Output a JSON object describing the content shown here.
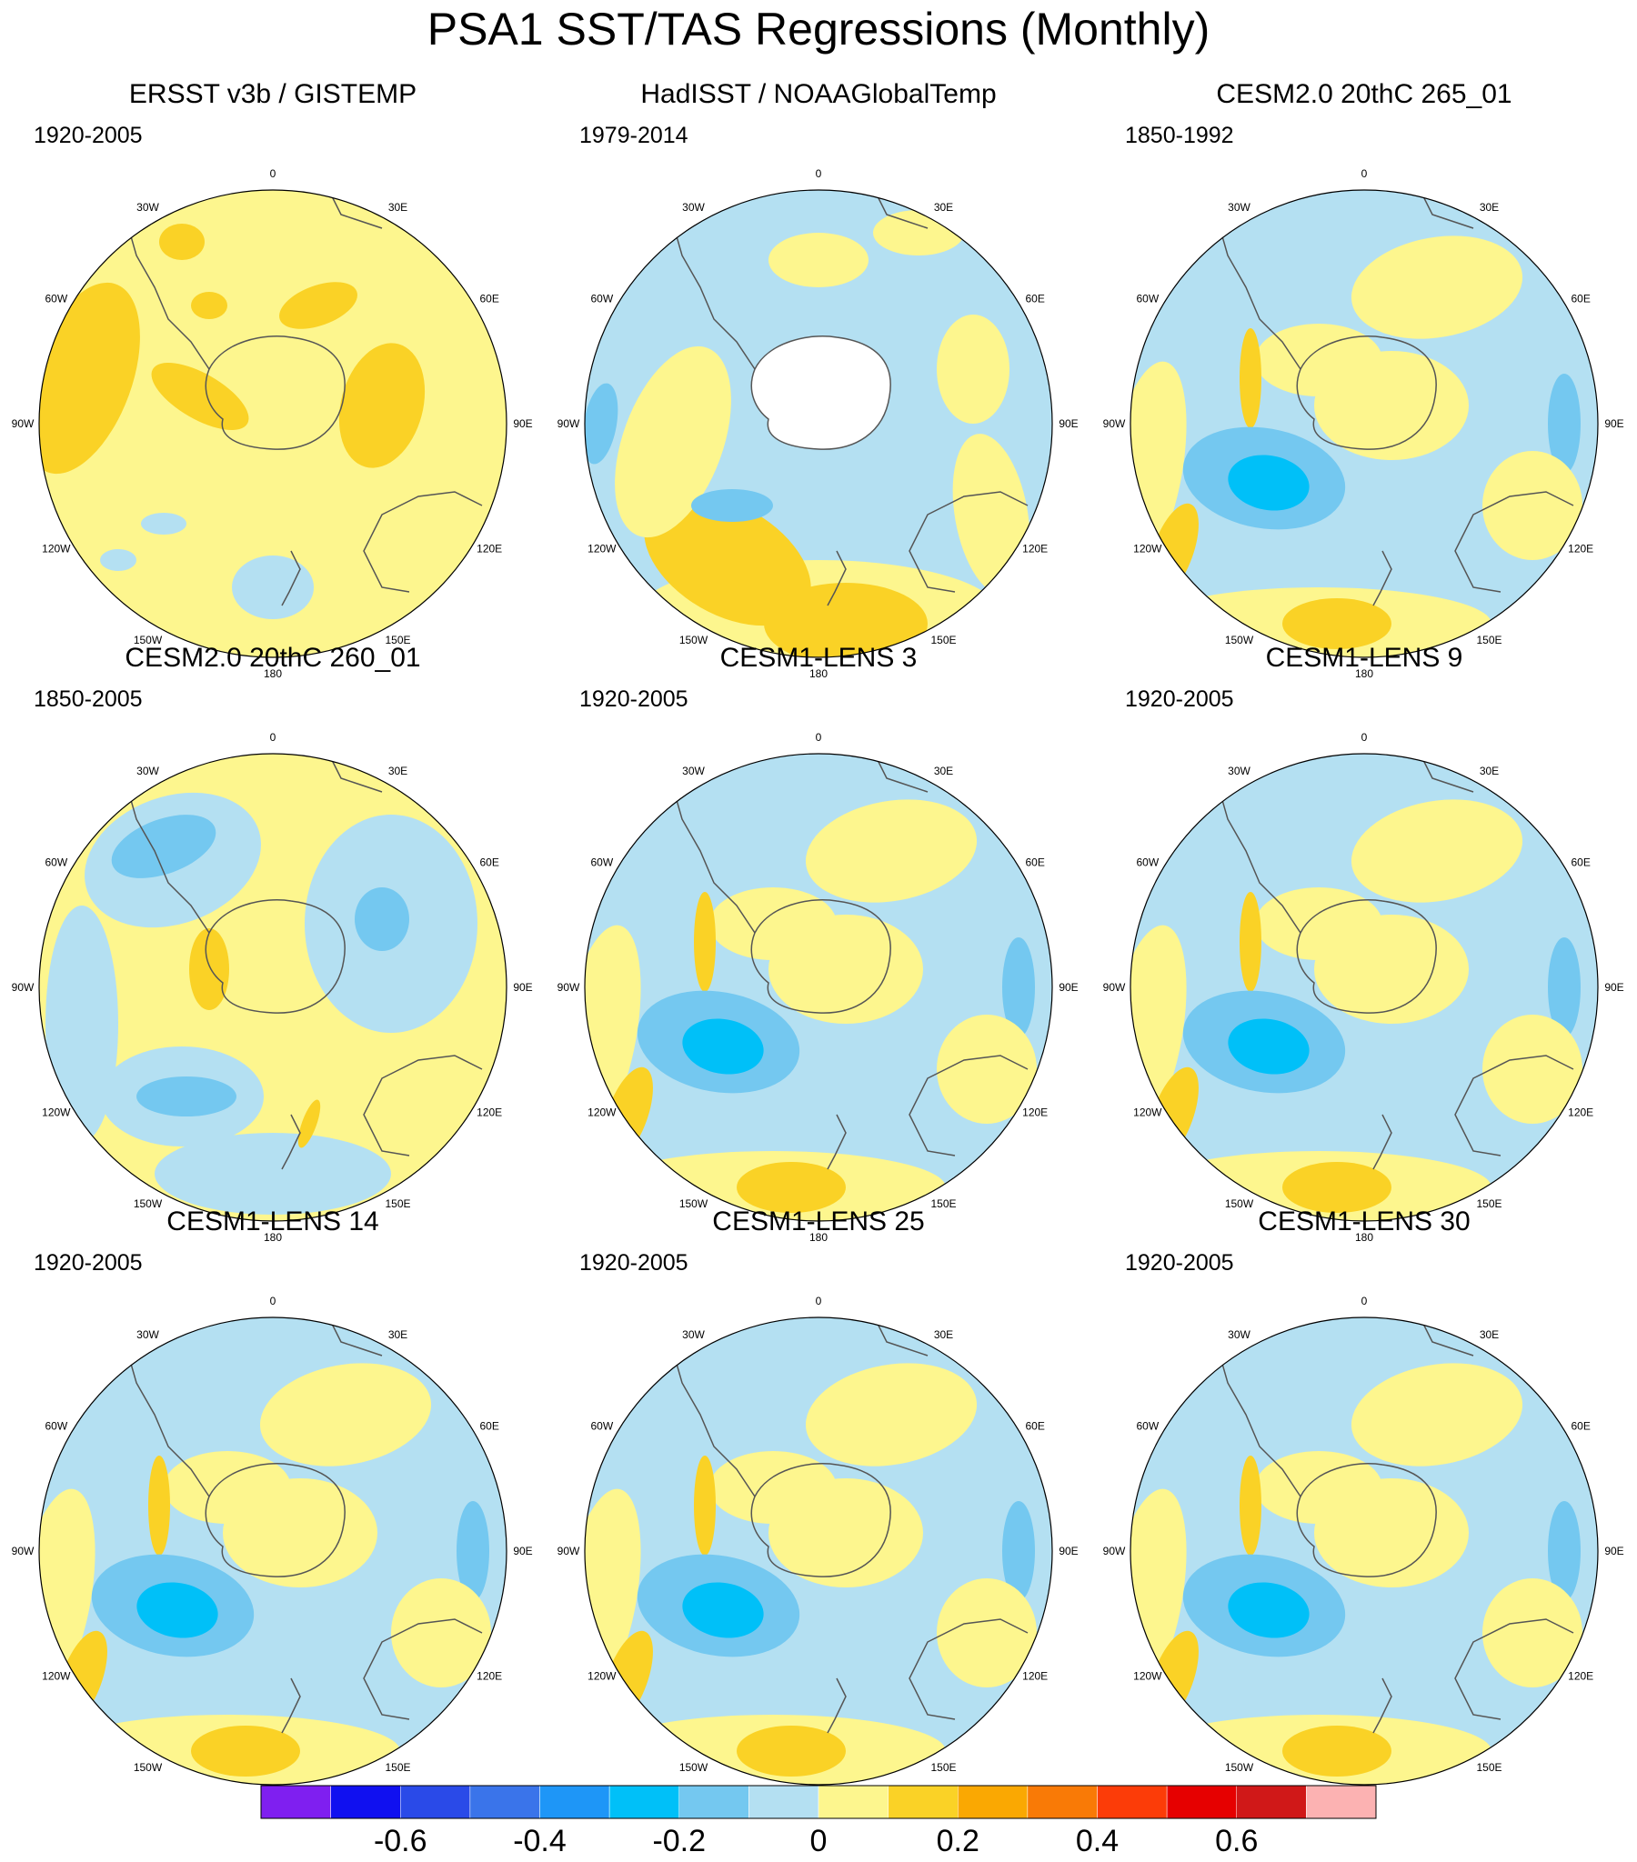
{
  "title": "PSA1 SST/TAS Regressions (Monthly)",
  "lon_labels": [
    "0",
    "30E",
    "60E",
    "90E",
    "120E",
    "150E",
    "180",
    "150W",
    "120W",
    "90W",
    "60W",
    "30W"
  ],
  "panels": [
    {
      "title": "ERSST v3b / GISTEMP",
      "period": "1920-2005",
      "pattern": "obs1"
    },
    {
      "title": "HadISST / NOAAGlobalTemp",
      "period": "1979-2014",
      "pattern": "obs2"
    },
    {
      "title": "CESM2.0 20thC 265_01",
      "period": "1850-1992",
      "pattern": "model"
    },
    {
      "title": "CESM2.0 20thC 260_01",
      "period": "1850-2005",
      "pattern": "model260"
    },
    {
      "title": "CESM1-LENS 3",
      "period": "1920-2005",
      "pattern": "model"
    },
    {
      "title": "CESM1-LENS 9",
      "period": "1920-2005",
      "pattern": "model"
    },
    {
      "title": "CESM1-LENS 14",
      "period": "1920-2005",
      "pattern": "model"
    },
    {
      "title": "CESM1-LENS 25",
      "period": "1920-2005",
      "pattern": "model"
    },
    {
      "title": "CESM1-LENS 30",
      "period": "1920-2005",
      "pattern": "model"
    }
  ],
  "colorbar": {
    "colors": [
      "#7f1ff0",
      "#1010f0",
      "#2a4ae8",
      "#3a74ea",
      "#1e96f7",
      "#00c0f8",
      "#74c8f0",
      "#b4e0f2",
      "#fdf68e",
      "#fad226",
      "#faa802",
      "#f97a06",
      "#fc3c08",
      "#e60000",
      "#d01818",
      "#fcb2b2"
    ],
    "tick_values": [
      -0.6,
      -0.4,
      -0.2,
      0,
      0.2,
      0.4,
      0.6
    ],
    "tick_labels": [
      "-0.6",
      "-0.4",
      "-0.2",
      "0",
      "0.2",
      "0.4",
      "0.6"
    ]
  },
  "colors": {
    "positive_light": "#fdf68e",
    "positive_mid": "#fad226",
    "positive_strong": "#faa802",
    "negative_light": "#b4e0f2",
    "negative_mid": "#74c8f0",
    "negative_strong": "#00c0f8",
    "land": "#ffffff",
    "coast": "#555555"
  }
}
